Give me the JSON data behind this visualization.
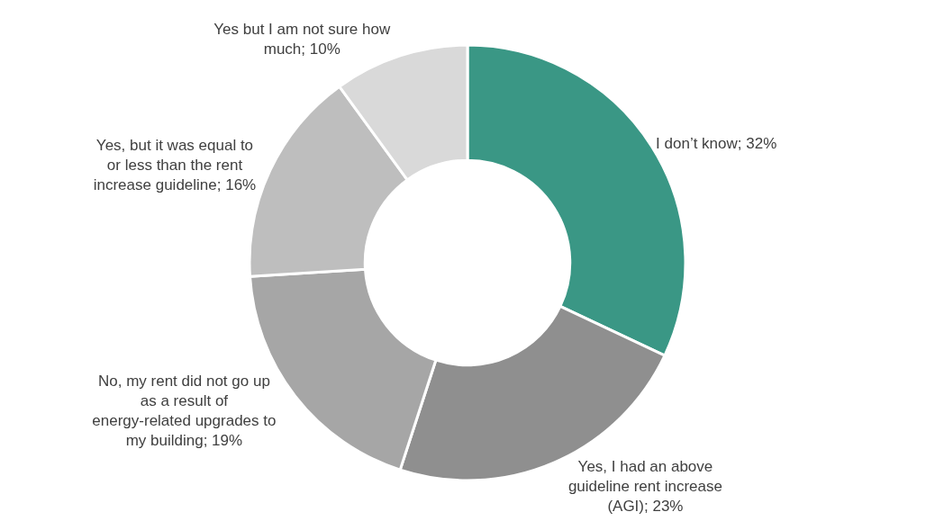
{
  "chart_data": {
    "type": "donut",
    "categories": [
      "I don’t know",
      "Yes, I had an above guideline rent increase (AGI)",
      "No, my rent did not go up as a result of energy-related upgrades to my building",
      "Yes, but it was equal to or less than the rent increase guideline",
      "Yes but I am not sure how much"
    ],
    "values": [
      32,
      23,
      19,
      16,
      10
    ],
    "value_labels": [
      "32%",
      "23%",
      "19%",
      "16%",
      "10%"
    ],
    "colors": [
      "#3a9785",
      "#8f8f8f",
      "#a6a6a6",
      "#bebebe",
      "#d9d9d9"
    ],
    "legend": false
  }
}
